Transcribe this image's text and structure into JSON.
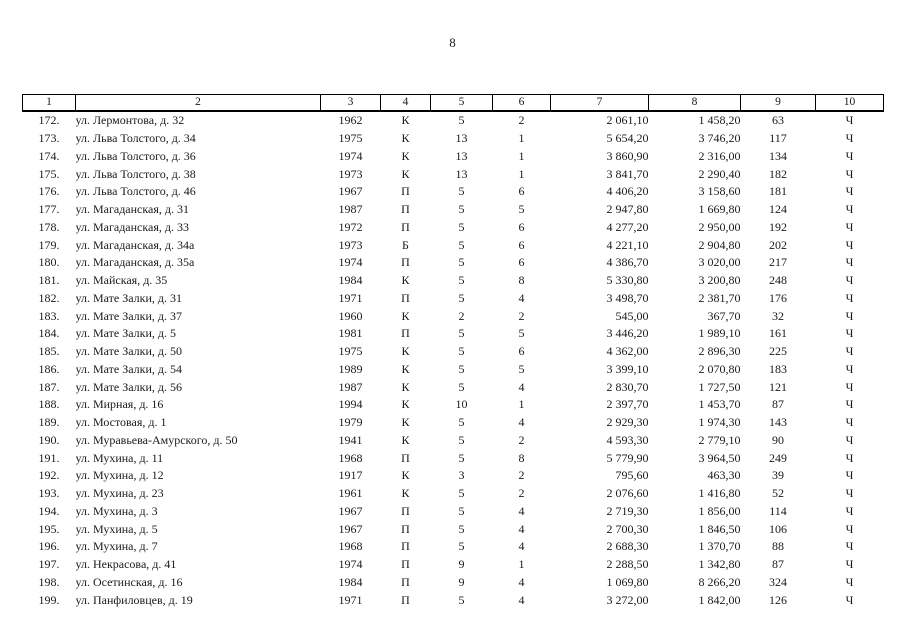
{
  "page": {
    "number": "8"
  },
  "table": {
    "headers": [
      "1",
      "2",
      "3",
      "4",
      "5",
      "6",
      "7",
      "8",
      "9",
      "10"
    ],
    "rows": [
      [
        "172.",
        "ул. Лермонтова, д. 32",
        "1962",
        "К",
        "5",
        "2",
        "2 061,10",
        "1 458,20",
        "63",
        "Ч"
      ],
      [
        "173.",
        "ул. Льва Толстого, д. 34",
        "1975",
        "К",
        "13",
        "1",
        "5 654,20",
        "3 746,20",
        "117",
        "Ч"
      ],
      [
        "174.",
        "ул. Льва Толстого, д. 36",
        "1974",
        "К",
        "13",
        "1",
        "3 860,90",
        "2 316,00",
        "134",
        "Ч"
      ],
      [
        "175.",
        "ул. Льва Толстого, д. 38",
        "1973",
        "К",
        "13",
        "1",
        "3 841,70",
        "2 290,40",
        "182",
        "Ч"
      ],
      [
        "176.",
        "ул. Льва Толстого, д. 46",
        "1967",
        "П",
        "5",
        "6",
        "4 406,20",
        "3 158,60",
        "181",
        "Ч"
      ],
      [
        "177.",
        "ул. Магаданская, д. 31",
        "1987",
        "П",
        "5",
        "5",
        "2 947,80",
        "1 669,80",
        "124",
        "Ч"
      ],
      [
        "178.",
        "ул. Магаданская, д. 33",
        "1972",
        "П",
        "5",
        "6",
        "4 277,20",
        "2 950,00",
        "192",
        "Ч"
      ],
      [
        "179.",
        "ул. Магаданская, д. 34а",
        "1973",
        "Б",
        "5",
        "6",
        "4 221,10",
        "2 904,80",
        "202",
        "Ч"
      ],
      [
        "180.",
        "ул. Магаданская, д. 35а",
        "1974",
        "П",
        "5",
        "6",
        "4 386,70",
        "3 020,00",
        "217",
        "Ч"
      ],
      [
        "181.",
        "ул. Майская, д. 35",
        "1984",
        "К",
        "5",
        "8",
        "5 330,80",
        "3 200,80",
        "248",
        "Ч"
      ],
      [
        "182.",
        "ул. Мате Залки, д. 31",
        "1971",
        "П",
        "5",
        "4",
        "3 498,70",
        "2 381,70",
        "176",
        "Ч"
      ],
      [
        "183.",
        "ул. Мате Залки, д. 37",
        "1960",
        "К",
        "2",
        "2",
        "545,00",
        "367,70",
        "32",
        "Ч"
      ],
      [
        "184.",
        "ул. Мате Залки, д. 5",
        "1981",
        "П",
        "5",
        "5",
        "3 446,20",
        "1 989,10",
        "161",
        "Ч"
      ],
      [
        "185.",
        "ул. Мате Залки, д. 50",
        "1975",
        "К",
        "5",
        "6",
        "4 362,00",
        "2 896,30",
        "225",
        "Ч"
      ],
      [
        "186.",
        "ул. Мате Залки, д. 54",
        "1989",
        "К",
        "5",
        "5",
        "3 399,10",
        "2 070,80",
        "183",
        "Ч"
      ],
      [
        "187.",
        "ул. Мате Залки, д. 56",
        "1987",
        "К",
        "5",
        "4",
        "2 830,70",
        "1 727,50",
        "121",
        "Ч"
      ],
      [
        "188.",
        "ул. Мирная, д. 16",
        "1994",
        "К",
        "10",
        "1",
        "2 397,70",
        "1 453,70",
        "87",
        "Ч"
      ],
      [
        "189.",
        "ул. Мостовая, д. 1",
        "1979",
        "К",
        "5",
        "4",
        "2 929,30",
        "1 974,30",
        "143",
        "Ч"
      ],
      [
        "190.",
        "ул. Муравьева-Амурского, д. 50",
        "1941",
        "К",
        "5",
        "2",
        "4 593,30",
        "2 779,10",
        "90",
        "Ч"
      ],
      [
        "191.",
        "ул. Мухина, д. 11",
        "1968",
        "П",
        "5",
        "8",
        "5 779,90",
        "3 964,50",
        "249",
        "Ч"
      ],
      [
        "192.",
        "ул. Мухина, д. 12",
        "1917",
        "К",
        "3",
        "2",
        "795,60",
        "463,30",
        "39",
        "Ч"
      ],
      [
        "193.",
        "ул. Мухина, д. 23",
        "1961",
        "К",
        "5",
        "2",
        "2 076,60",
        "1 416,80",
        "52",
        "Ч"
      ],
      [
        "194.",
        "ул. Мухина, д. 3",
        "1967",
        "П",
        "5",
        "4",
        "2 719,30",
        "1 856,00",
        "114",
        "Ч"
      ],
      [
        "195.",
        "ул. Мухина, д. 5",
        "1967",
        "П",
        "5",
        "4",
        "2 700,30",
        "1 846,50",
        "106",
        "Ч"
      ],
      [
        "196.",
        "ул. Мухина, д. 7",
        "1968",
        "П",
        "5",
        "4",
        "2 688,30",
        "1 370,70",
        "88",
        "Ч"
      ],
      [
        "197.",
        "ул. Некрасова, д. 41",
        "1974",
        "П",
        "9",
        "1",
        "2 288,50",
        "1 342,80",
        "87",
        "Ч"
      ],
      [
        "198.",
        "ул. Осетинская, д. 16",
        "1984",
        "П",
        "9",
        "4",
        "1 069,80",
        "8 266,20",
        "324",
        "Ч"
      ],
      [
        "199.",
        "ул. Панфиловцев, д. 19",
        "1971",
        "П",
        "5",
        "4",
        "3 272,00",
        "1 842,00",
        "126",
        "Ч"
      ]
    ]
  }
}
